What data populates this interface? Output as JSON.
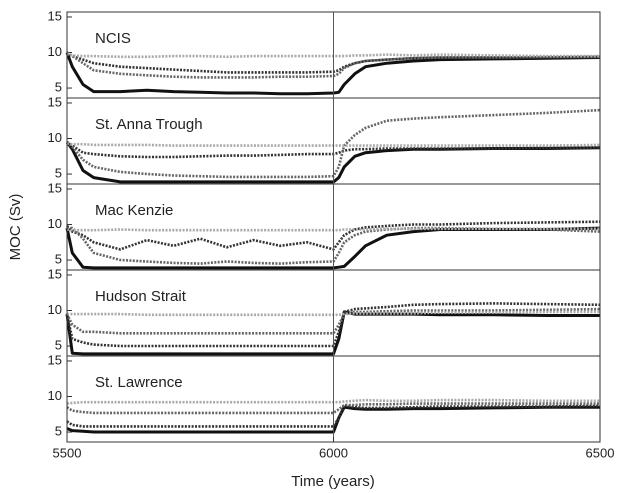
{
  "chart_data": {
    "type": "line",
    "xlabel": "Time (years)",
    "ylabel": "MOC (Sv)",
    "xlim": [
      5500,
      6500
    ],
    "xticks": [
      5500,
      6000,
      6500
    ],
    "vline": 6000,
    "x": [
      5500,
      5510,
      5530,
      5550,
      5600,
      5650,
      5700,
      5750,
      5800,
      5850,
      5900,
      5950,
      6000,
      6010,
      6020,
      6040,
      6060,
      6100,
      6150,
      6200,
      6300,
      6400,
      6500
    ],
    "panels": [
      {
        "title": "NCIS",
        "ylim": [
          3.6,
          15.7
        ],
        "yticks": [
          5,
          10,
          15
        ],
        "series": [
          {
            "color": "#111111",
            "style": "solid",
            "values": [
              10,
              8,
              5.5,
              4.5,
              4.5,
              4.7,
              4.5,
              4.4,
              4.3,
              4.3,
              4.2,
              4.2,
              4.3,
              4.4,
              5.5,
              7,
              8,
              8.5,
              8.8,
              9,
              9.1,
              9.2,
              9.3
            ]
          },
          {
            "color": "#333333",
            "style": "dotted",
            "values": [
              10,
              9.5,
              9,
              8.5,
              8,
              7.8,
              7.6,
              7.4,
              7.2,
              7.2,
              7.2,
              7.2,
              7.3,
              7.5,
              8,
              8.5,
              8.8,
              9,
              9.2,
              9.3,
              9.3,
              9.3,
              9.4
            ]
          },
          {
            "color": "#666666",
            "style": "dotted",
            "values": [
              10,
              9.5,
              8.5,
              7.5,
              7,
              6.8,
              6.6,
              6.5,
              6.5,
              6.5,
              6.6,
              6.6,
              6.7,
              7,
              7.8,
              8.5,
              8.8,
              9,
              9.2,
              9.3,
              9.3,
              9.4,
              9.4
            ]
          },
          {
            "color": "#aaaaaa",
            "style": "dotted",
            "values": [
              9.8,
              9.6,
              9.5,
              9.5,
              9.4,
              9.4,
              9.5,
              9.5,
              9.4,
              9.5,
              9.5,
              9.5,
              9.5,
              9.5,
              9.5,
              9.6,
              9.6,
              9.7,
              9.6,
              9.7,
              9.6,
              9.5,
              9.5
            ]
          }
        ]
      },
      {
        "title": "St. Anna Trough",
        "ylim": [
          3.6,
          15.7
        ],
        "yticks": [
          5,
          10,
          15
        ],
        "series": [
          {
            "color": "#111111",
            "style": "solid",
            "values": [
              9.5,
              8.5,
              5.5,
              4.5,
              3.9,
              3.9,
              3.9,
              3.9,
              3.9,
              3.9,
              3.9,
              3.9,
              3.9,
              4.5,
              6,
              7.5,
              8,
              8.3,
              8.5,
              8.5,
              8.6,
              8.6,
              8.7
            ]
          },
          {
            "color": "#333333",
            "style": "dotted",
            "values": [
              9.5,
              9,
              8,
              7.8,
              7.5,
              7.4,
              7.4,
              7.5,
              7.6,
              7.6,
              7.7,
              7.8,
              7.8,
              8,
              8.3,
              8.5,
              8.5,
              8.6,
              8.6,
              8.6,
              8.6,
              8.7,
              8.7
            ]
          },
          {
            "color": "#666666",
            "style": "dotted",
            "values": [
              9.5,
              8.8,
              7,
              6,
              5.3,
              5,
              4.8,
              4.7,
              4.6,
              4.6,
              4.6,
              4.6,
              4.7,
              6,
              9,
              10.5,
              11.5,
              12.5,
              12.8,
              13,
              13.3,
              13.6,
              14
            ]
          },
          {
            "color": "#aaaaaa",
            "style": "dotted",
            "values": [
              9.3,
              9.2,
              9.2,
              9.1,
              9.1,
              9.1,
              9,
              9,
              9,
              9,
              9,
              9,
              9,
              9,
              9,
              9,
              9,
              9,
              9,
              9,
              9,
              9,
              9.1
            ]
          }
        ]
      },
      {
        "title": "Mac Kenzie",
        "ylim": [
          3.6,
          15.7
        ],
        "yticks": [
          5,
          10,
          15
        ],
        "series": [
          {
            "color": "#111111",
            "style": "solid",
            "values": [
              9.5,
              6,
              4,
              3.9,
              3.9,
              3.9,
              3.9,
              3.9,
              3.9,
              3.9,
              3.9,
              3.9,
              3.9,
              4,
              4.1,
              5.5,
              7,
              8.5,
              9,
              9.3,
              9.3,
              9.3,
              9.5
            ]
          },
          {
            "color": "#333333",
            "style": "dotted",
            "values": [
              9.8,
              9,
              8.5,
              7.5,
              6.5,
              7.8,
              7,
              8,
              6.8,
              7.8,
              7,
              7.5,
              6.5,
              7.5,
              8.5,
              9.3,
              9.6,
              9.8,
              10,
              10,
              10.2,
              10.3,
              10.4
            ]
          },
          {
            "color": "#666666",
            "style": "dotted",
            "values": [
              9.5,
              9.5,
              8,
              6,
              5,
              4.8,
              4.6,
              4.5,
              4.8,
              4.6,
              4.5,
              4.7,
              4.8,
              6,
              7.5,
              8.5,
              9,
              9.3,
              9.5,
              9.5,
              9.4,
              9.3,
              9
            ]
          },
          {
            "color": "#aaaaaa",
            "style": "dotted",
            "values": [
              9.3,
              9.2,
              9.2,
              9.2,
              9.3,
              9.2,
              9.2,
              9.2,
              9.2,
              9.2,
              9.2,
              9.2,
              9.2,
              9.2,
              9.3,
              9.3,
              9.3,
              9.4,
              9.4,
              9.4,
              9.4,
              9.4,
              9.4
            ]
          }
        ]
      },
      {
        "title": "Hudson Strait",
        "ylim": [
          3.6,
          15.7
        ],
        "yticks": [
          5,
          10,
          15
        ],
        "series": [
          {
            "color": "#111111",
            "style": "solid",
            "values": [
              9.5,
              4,
              3.9,
              3.9,
              3.9,
              3.9,
              3.9,
              3.9,
              3.9,
              3.9,
              3.9,
              3.9,
              3.9,
              6,
              9.8,
              9.5,
              9.5,
              9.5,
              9.5,
              9.4,
              9.4,
              9.3,
              9.3
            ]
          },
          {
            "color": "#333333",
            "style": "dotted",
            "values": [
              9.5,
              6,
              5.5,
              5.2,
              5,
              5,
              5,
              5,
              5,
              5,
              5,
              5,
              5,
              7,
              9.8,
              10.2,
              10.3,
              10.5,
              10.8,
              10.9,
              11,
              10.9,
              10.8
            ]
          },
          {
            "color": "#666666",
            "style": "dotted",
            "values": [
              9.5,
              8,
              7,
              7,
              6.8,
              6.8,
              6.8,
              6.8,
              6.8,
              6.8,
              6.8,
              6.8,
              6.8,
              8,
              9.5,
              9.8,
              9.8,
              9.9,
              10,
              10,
              10,
              10.1,
              10.2
            ]
          },
          {
            "color": "#aaaaaa",
            "style": "dotted",
            "values": [
              9.5,
              9.5,
              9.5,
              9.5,
              9.5,
              9.4,
              9.4,
              9.4,
              9.4,
              9.4,
              9.4,
              9.4,
              9.4,
              9.4,
              9.5,
              9.6,
              9.6,
              9.6,
              9.6,
              9.7,
              9.7,
              9.8,
              9.8
            ]
          }
        ]
      },
      {
        "title": "St. Lawrence",
        "ylim": [
          3.6,
          15.7
        ],
        "yticks": [
          5,
          10,
          15
        ],
        "series": [
          {
            "color": "#111111",
            "style": "solid",
            "values": [
              5.5,
              5.2,
              5.1,
              5,
              5,
              5,
              5,
              5,
              5,
              5,
              5,
              5,
              5,
              7,
              8.5,
              8.3,
              8.2,
              8.2,
              8.3,
              8.3,
              8.4,
              8.5,
              8.5
            ]
          },
          {
            "color": "#333333",
            "style": "dotted",
            "values": [
              6.5,
              6,
              5.8,
              5.8,
              5.8,
              5.8,
              5.8,
              5.8,
              5.8,
              5.8,
              5.8,
              5.8,
              5.8,
              7,
              8.8,
              8.5,
              8.4,
              8.4,
              8.5,
              8.6,
              8.6,
              8.6,
              8.7
            ]
          },
          {
            "color": "#666666",
            "style": "dotted",
            "values": [
              8.5,
              8,
              7.8,
              7.7,
              7.7,
              7.7,
              7.7,
              7.7,
              7.7,
              7.7,
              7.7,
              7.7,
              7.7,
              8.2,
              8.8,
              8.8,
              8.9,
              8.9,
              9,
              9,
              9,
              9,
              9
            ]
          },
          {
            "color": "#aaaaaa",
            "style": "dotted",
            "values": [
              9,
              9.1,
              9.2,
              9.2,
              9.2,
              9.2,
              9.2,
              9.2,
              9.2,
              9.2,
              9.2,
              9.2,
              9.2,
              9.2,
              9.3,
              9.4,
              9.5,
              9.4,
              9.4,
              9.5,
              9.5,
              9.4,
              9.4
            ]
          }
        ]
      }
    ]
  }
}
